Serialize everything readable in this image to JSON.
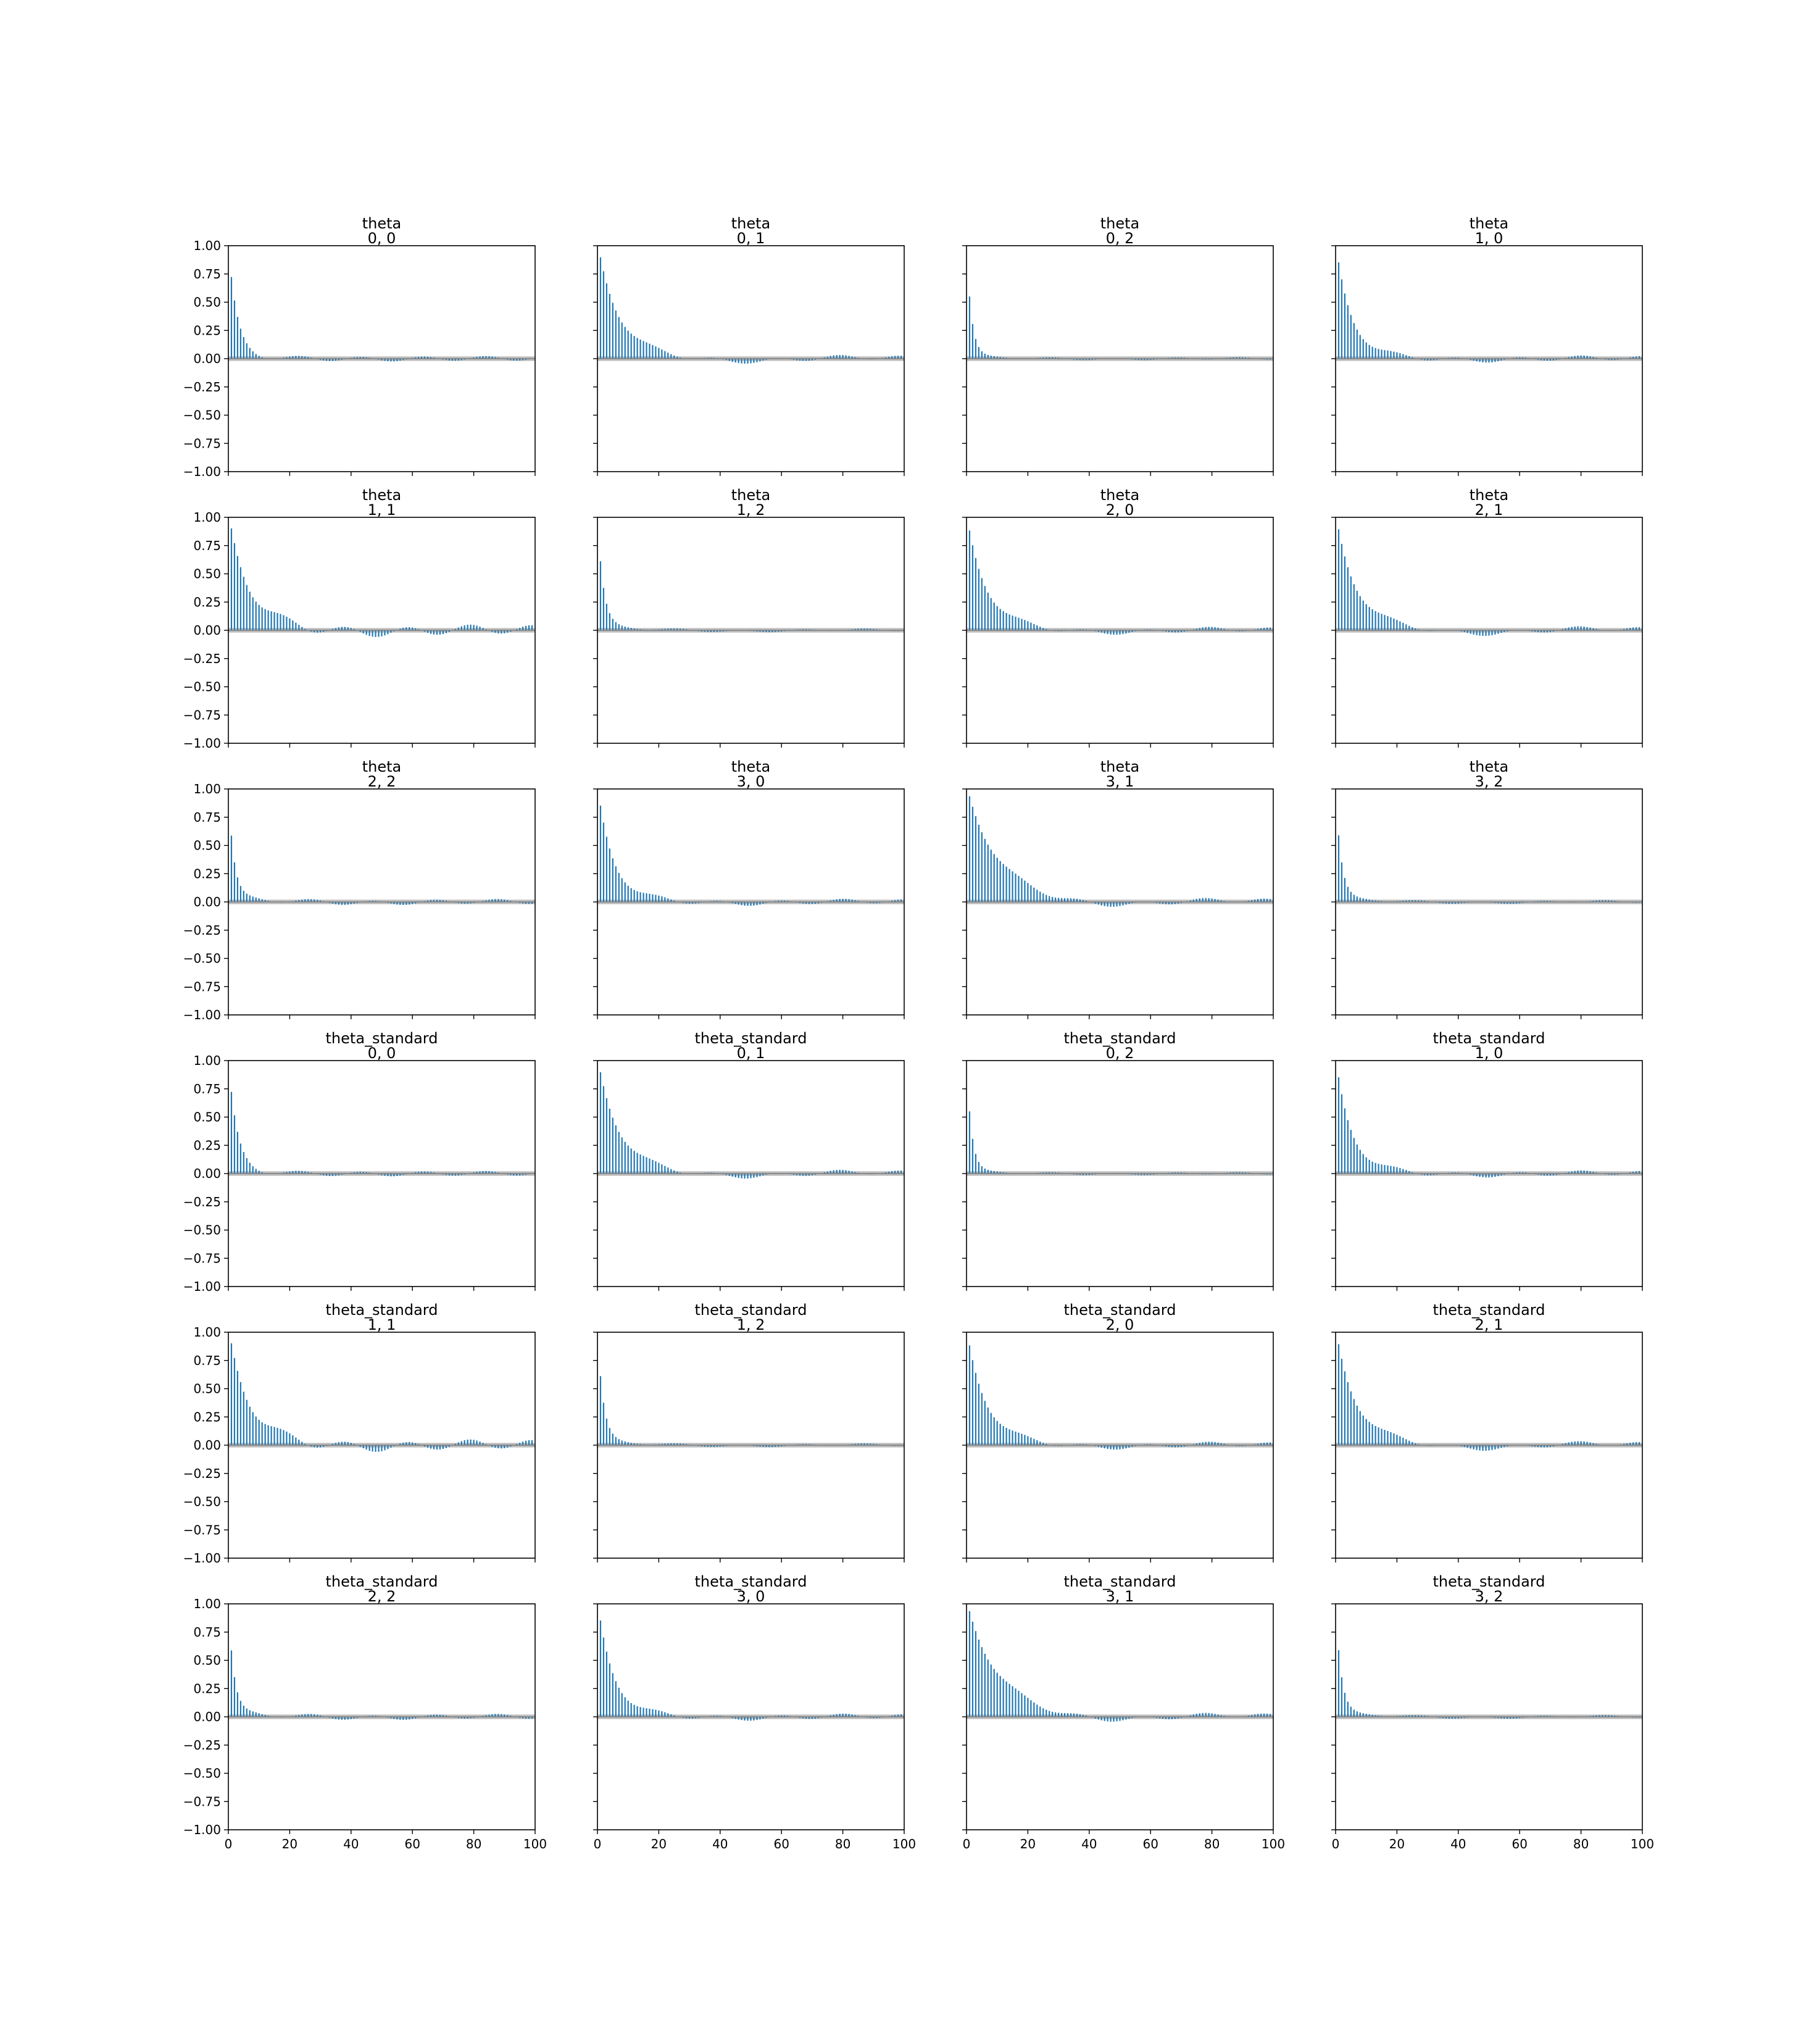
{
  "chart_data": {
    "type": "bar",
    "plot_kind": "autocorrelation",
    "grid": {
      "rows": 6,
      "cols": 4
    },
    "xlim": [
      0,
      100
    ],
    "ylim": [
      -1.0,
      1.0
    ],
    "xticks": [
      0,
      20,
      40,
      60,
      80,
      100
    ],
    "xtick_labels": [
      "0",
      "20",
      "40",
      "60",
      "80",
      "100"
    ],
    "yticks": [
      1.0,
      0.75,
      0.5,
      0.25,
      0.0,
      -0.25,
      -0.5,
      -0.75,
      -1.0
    ],
    "ytick_labels": [
      "1.00",
      "0.75",
      "0.50",
      "0.25",
      "0.00",
      "−0.25",
      "−0.50",
      "−0.75",
      "−1.00"
    ],
    "bar_color": "#1f77b4",
    "band_color": "#bdbdbd",
    "band_halfwidth": 0.02,
    "lags": 100,
    "panels": [
      {
        "title": "theta",
        "subtitle": "0, 0",
        "decay": 0.7,
        "tail": 0.01,
        "wave": 0.02
      },
      {
        "title": "theta",
        "subtitle": "0, 1",
        "decay": 0.86,
        "tail": 0.05,
        "wave": 0.02
      },
      {
        "title": "theta",
        "subtitle": "0, 2",
        "decay": 0.55,
        "tail": 0.01,
        "wave": 0.01
      },
      {
        "title": "theta",
        "subtitle": "1, 0",
        "decay": 0.82,
        "tail": 0.03,
        "wave": 0.02
      },
      {
        "title": "theta",
        "subtitle": "1, 1",
        "decay": 0.86,
        "tail": 0.04,
        "wave": 0.04
      },
      {
        "title": "theta",
        "subtitle": "1, 2",
        "decay": 0.6,
        "tail": 0.02,
        "wave": 0.01
      },
      {
        "title": "theta",
        "subtitle": "2, 0",
        "decay": 0.85,
        "tail": 0.04,
        "wave": 0.02
      },
      {
        "title": "theta",
        "subtitle": "2, 1",
        "decay": 0.85,
        "tail": 0.06,
        "wave": 0.02
      },
      {
        "title": "theta",
        "subtitle": "2, 2",
        "decay": 0.58,
        "tail": 0.02,
        "wave": 0.02
      },
      {
        "title": "theta",
        "subtitle": "3, 0",
        "decay": 0.82,
        "tail": 0.03,
        "wave": 0.02
      },
      {
        "title": "theta",
        "subtitle": "3, 1",
        "decay": 0.9,
        "tail": 0.06,
        "wave": 0.02
      },
      {
        "title": "theta",
        "subtitle": "3, 2",
        "decay": 0.58,
        "tail": 0.02,
        "wave": 0.01
      },
      {
        "title": "theta_standard",
        "subtitle": "0, 0",
        "decay": 0.7,
        "tail": 0.01,
        "wave": 0.02
      },
      {
        "title": "theta_standard",
        "subtitle": "0, 1",
        "decay": 0.86,
        "tail": 0.05,
        "wave": 0.02
      },
      {
        "title": "theta_standard",
        "subtitle": "0, 2",
        "decay": 0.55,
        "tail": 0.01,
        "wave": 0.01
      },
      {
        "title": "theta_standard",
        "subtitle": "1, 0",
        "decay": 0.82,
        "tail": 0.03,
        "wave": 0.02
      },
      {
        "title": "theta_standard",
        "subtitle": "1, 1",
        "decay": 0.86,
        "tail": 0.04,
        "wave": 0.04
      },
      {
        "title": "theta_standard",
        "subtitle": "1, 2",
        "decay": 0.6,
        "tail": 0.02,
        "wave": 0.01
      },
      {
        "title": "theta_standard",
        "subtitle": "2, 0",
        "decay": 0.85,
        "tail": 0.04,
        "wave": 0.02
      },
      {
        "title": "theta_standard",
        "subtitle": "2, 1",
        "decay": 0.85,
        "tail": 0.06,
        "wave": 0.02
      },
      {
        "title": "theta_standard",
        "subtitle": "2, 2",
        "decay": 0.58,
        "tail": 0.02,
        "wave": 0.02
      },
      {
        "title": "theta_standard",
        "subtitle": "3, 0",
        "decay": 0.82,
        "tail": 0.03,
        "wave": 0.02
      },
      {
        "title": "theta_standard",
        "subtitle": "3, 1",
        "decay": 0.9,
        "tail": 0.06,
        "wave": 0.02
      },
      {
        "title": "theta_standard",
        "subtitle": "3, 2",
        "decay": 0.58,
        "tail": 0.02,
        "wave": 0.01
      }
    ]
  }
}
